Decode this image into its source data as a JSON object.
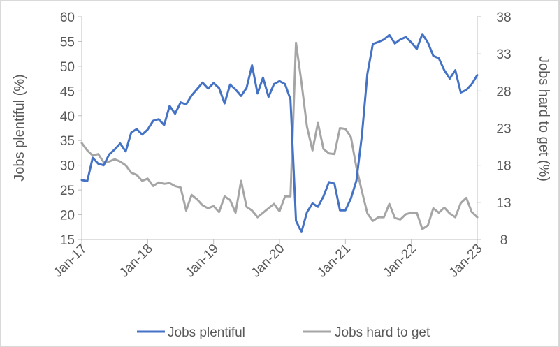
{
  "chart_data": {
    "type": "line",
    "x_tick_labels": [
      "Jan-17",
      "Jan-18",
      "Jan-19",
      "Jan-20",
      "Jan-21",
      "Jan-22",
      "Jan-23"
    ],
    "x_start": "Jan-17",
    "x_end": "Feb-23",
    "y_left": {
      "label": "Jobs plentiful (%)",
      "min": 15,
      "max": 60,
      "step": 5,
      "tick_labels": [
        "15",
        "20",
        "25",
        "30",
        "35",
        "40",
        "45",
        "50",
        "55",
        "60"
      ]
    },
    "y_right": {
      "label": "Jobs hard to get  (%)",
      "min": 8,
      "max": 38,
      "step": 5,
      "tick_labels": [
        "8",
        "13",
        "18",
        "23",
        "28",
        "33",
        "38"
      ]
    },
    "grid": false,
    "legend_position": "bottom",
    "series": [
      {
        "name": "Jobs plentiful",
        "axis": "left",
        "color": "#4472C4",
        "values": [
          27.0,
          26.8,
          31.5,
          30.3,
          30.0,
          32.2,
          33.2,
          34.4,
          32.8,
          36.6,
          37.3,
          36.2,
          37.2,
          39.0,
          39.3,
          38.1,
          42.0,
          40.4,
          42.7,
          42.3,
          44.1,
          45.4,
          46.7,
          45.5,
          46.6,
          45.6,
          42.5,
          46.3,
          45.3,
          44.0,
          45.6,
          50.2,
          44.5,
          47.7,
          43.8,
          46.4,
          47.0,
          46.4,
          43.3,
          18.8,
          16.5,
          20.5,
          22.3,
          21.6,
          23.7,
          26.6,
          26.3,
          20.9,
          20.9,
          23.3,
          26.9,
          36.0,
          48.5,
          54.5,
          54.9,
          55.4,
          56.3,
          54.6,
          55.4,
          55.9,
          54.8,
          53.5,
          56.5,
          54.8,
          52.1,
          51.6,
          49.2,
          47.5,
          49.2,
          44.7,
          45.2,
          46.4,
          48.2
        ]
      },
      {
        "name": "Jobs hard to get",
        "axis": "right",
        "color": "#A5A5A5",
        "values": [
          21.0,
          20.0,
          19.3,
          19.5,
          18.4,
          18.5,
          18.8,
          18.5,
          18.0,
          17.0,
          16.7,
          15.9,
          16.2,
          15.2,
          15.7,
          15.5,
          15.6,
          15.2,
          15.0,
          11.9,
          14.0,
          13.4,
          12.6,
          12.2,
          12.5,
          11.7,
          13.8,
          13.3,
          11.6,
          15.9,
          12.4,
          11.9,
          11.0,
          11.6,
          12.2,
          12.8,
          11.8,
          13.8,
          13.8,
          34.5,
          29.2,
          23.2,
          20.0,
          23.7,
          20.2,
          19.6,
          19.5,
          23.0,
          22.9,
          21.8,
          17.7,
          14.5,
          11.5,
          10.5,
          11.0,
          11.0,
          12.8,
          10.9,
          10.7,
          11.4,
          11.6,
          11.6,
          9.4,
          9.9,
          12.2,
          11.6,
          12.3,
          11.5,
          11.0,
          12.9,
          13.6,
          11.7,
          11.0
        ]
      }
    ]
  }
}
